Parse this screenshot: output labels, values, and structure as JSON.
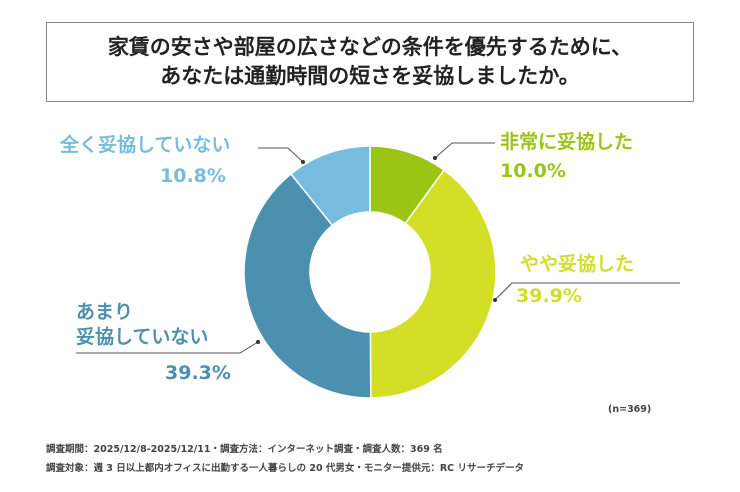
{
  "chart_data": {
    "type": "donut",
    "title": "家賃の安さや部屋の広さなどの条件を優先するために、\nあなたは通勤時間の短さを妥協しましたか。",
    "categories": [
      "非常に妥協した",
      "やや妥協した",
      "あまり\n妥協していない",
      "全く妥協していない"
    ],
    "values": [
      10.0,
      39.9,
      39.3,
      10.8
    ],
    "value_labels": [
      "10.0%",
      "39.9%",
      "39.3%",
      "10.8%"
    ],
    "colors": [
      "#9cc414",
      "#d3df27",
      "#4c90b0",
      "#77bcdf"
    ],
    "sample_note": "(n=369)",
    "notes": [
      "調査期間：2025/12/8-2025/12/11・調査方法：インターネット調査・調査人数：369 名",
      "調査対象：週 3 日以上都内オフィスに出勤する一人暮らしの 20 代男女・モニター提供元：RC リサーチデータ"
    ]
  }
}
